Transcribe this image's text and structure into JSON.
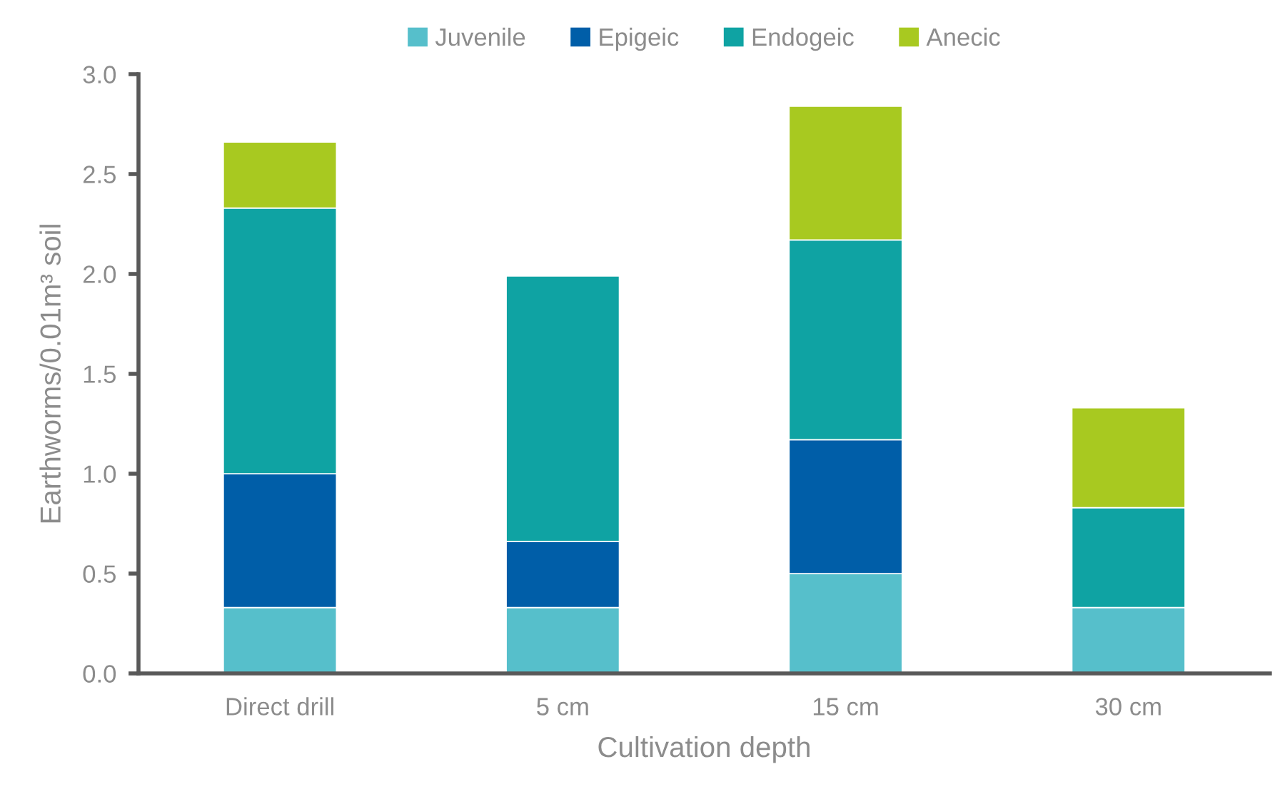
{
  "chart_data": {
    "type": "bar",
    "stacked": true,
    "xlabel": "Cultivation depth",
    "ylabel": "Earthworms/0.01m³ soil",
    "categories": [
      "Direct drill",
      "5 cm",
      "15 cm",
      "30 cm"
    ],
    "series": [
      {
        "name": "Juvenile",
        "color": "#56bfcb",
        "values": [
          0.33,
          0.33,
          0.5,
          0.33
        ]
      },
      {
        "name": "Epigeic",
        "color": "#005ea8",
        "values": [
          0.67,
          0.33,
          0.67,
          null
        ]
      },
      {
        "name": "Endogeic",
        "color": "#0fa3a3",
        "values": [
          1.33,
          1.33,
          1.0,
          0.5
        ]
      },
      {
        "name": "Anecic",
        "color": "#a8c920",
        "values": [
          0.33,
          null,
          0.67,
          0.5
        ]
      }
    ],
    "ylim": [
      0,
      3.0
    ],
    "yticks": [
      {
        "value": 0,
        "label": "0.0"
      },
      {
        "value": 0.5,
        "label": "0.5"
      },
      {
        "value": 1.0,
        "label": "1.0"
      },
      {
        "value": 1.5,
        "label": "1.5"
      },
      {
        "value": 2.0,
        "label": "2.0"
      },
      {
        "value": 2.5,
        "label": "2.5"
      },
      {
        "value": 3.0,
        "label": "3.0"
      }
    ],
    "grid": false,
    "legend": "top"
  }
}
